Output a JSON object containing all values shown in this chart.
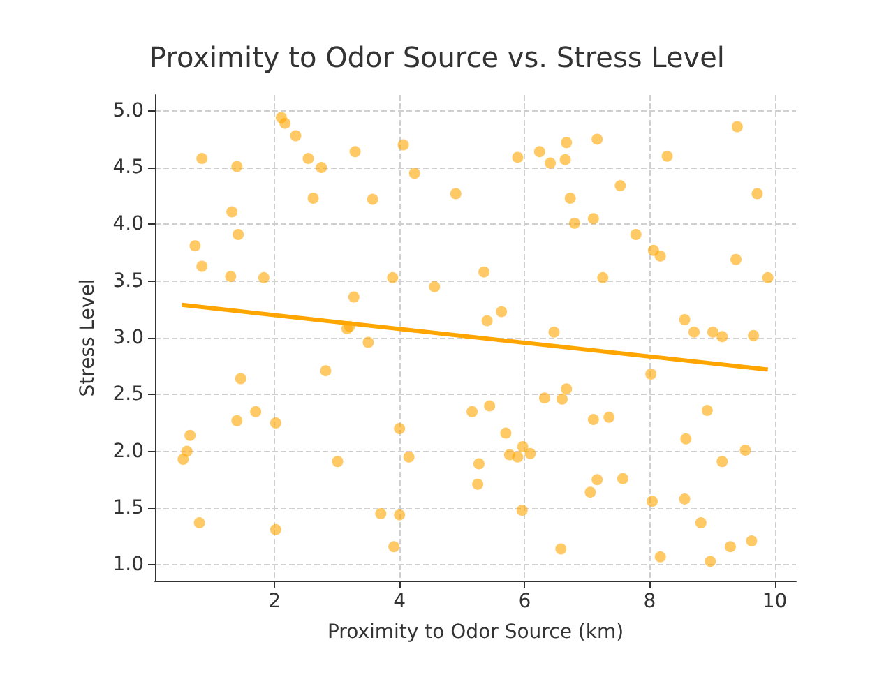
{
  "chart_data": {
    "type": "scatter",
    "title": "Proximity to Odor Source vs. Stress Level",
    "xlabel": "Proximity to Odor Source (km)",
    "ylabel": "Stress Level",
    "xlim": [
      0.09,
      10.34
    ],
    "ylim": [
      0.86,
      5.14
    ],
    "xticks": [
      2,
      4,
      6,
      8,
      10
    ],
    "yticks": [
      {
        "value": 1,
        "label": "1.0"
      },
      {
        "value": 1.5,
        "label": "1.5"
      },
      {
        "value": 2,
        "label": "2.0"
      },
      {
        "value": 2.5,
        "label": "2.5"
      },
      {
        "value": 3,
        "label": "3.0"
      },
      {
        "value": 3.5,
        "label": "3.5"
      },
      {
        "value": 4,
        "label": "4.0"
      },
      {
        "value": 4.5,
        "label": "4.5"
      },
      {
        "value": 5,
        "label": "5.0"
      }
    ],
    "grid": true,
    "marker": "circle",
    "series": [
      {
        "color": "#ffa500",
        "x": [
          0.84,
          1.4,
          1.32,
          1.42,
          0.73,
          0.84,
          1.3,
          1.83,
          2.11,
          2.17,
          2.34,
          2.54,
          2.75,
          2.62,
          3.29,
          3.57,
          4.06,
          4.24,
          4.9,
          3.89,
          4.56,
          3.27,
          3.2,
          3.16,
          3.5,
          5.35,
          5.89,
          6.24,
          6.41,
          6.67,
          6.65,
          7.16,
          8.28,
          9.4,
          9.72,
          6.73,
          6.8,
          7.1,
          7.53,
          7.78,
          8.06,
          8.17,
          9.38,
          9.89,
          7.25,
          5.4,
          5.63,
          6.47,
          8.56,
          8.71,
          9.01,
          9.16,
          9.66,
          0.54,
          0.6,
          0.65,
          0.8,
          1.4,
          1.46,
          1.7,
          2.02,
          2.02,
          2.82,
          3.01,
          3.7,
          4.0,
          3.91,
          4.0,
          4.15,
          5.16,
          5.44,
          5.7,
          5.27,
          5.25,
          5.76,
          5.89,
          5.97,
          6.09,
          5.96,
          6.32,
          6.6,
          6.67,
          6.58,
          7.1,
          7.35,
          7.05,
          7.16,
          7.57,
          8.02,
          8.04,
          8.17,
          8.58,
          8.92,
          8.56,
          8.82,
          8.97,
          9.16,
          9.53,
          9.29,
          9.63
        ],
        "values": [
          4.58,
          4.51,
          4.11,
          3.91,
          3.81,
          3.63,
          3.54,
          3.53,
          4.94,
          4.89,
          4.78,
          4.58,
          4.5,
          4.23,
          4.64,
          4.22,
          4.7,
          4.45,
          4.27,
          3.53,
          3.45,
          3.36,
          3.1,
          3.08,
          2.96,
          3.58,
          4.59,
          4.64,
          4.54,
          4.72,
          4.57,
          4.75,
          4.6,
          4.86,
          4.27,
          4.23,
          4.01,
          4.05,
          4.34,
          3.91,
          3.77,
          3.72,
          3.69,
          3.53,
          3.53,
          3.15,
          3.23,
          3.05,
          3.16,
          3.05,
          3.05,
          3.01,
          3.02,
          1.93,
          2.0,
          2.14,
          1.37,
          2.27,
          2.64,
          2.35,
          2.25,
          1.31,
          2.71,
          1.91,
          1.45,
          1.44,
          1.16,
          2.2,
          1.95,
          2.35,
          2.4,
          2.16,
          1.89,
          1.71,
          1.97,
          1.95,
          2.04,
          1.98,
          1.48,
          2.47,
          2.46,
          2.55,
          1.14,
          2.28,
          2.3,
          1.64,
          1.75,
          1.76,
          2.68,
          1.56,
          1.07,
          2.11,
          2.36,
          1.58,
          1.37,
          1.03,
          1.91,
          2.01,
          1.16,
          1.21
        ]
      },
      {
        "type": "line",
        "color": "#ffa500",
        "marker": "none",
        "x": [
          0.52,
          9.89
        ],
        "values": [
          3.29,
          2.72
        ]
      }
    ]
  }
}
